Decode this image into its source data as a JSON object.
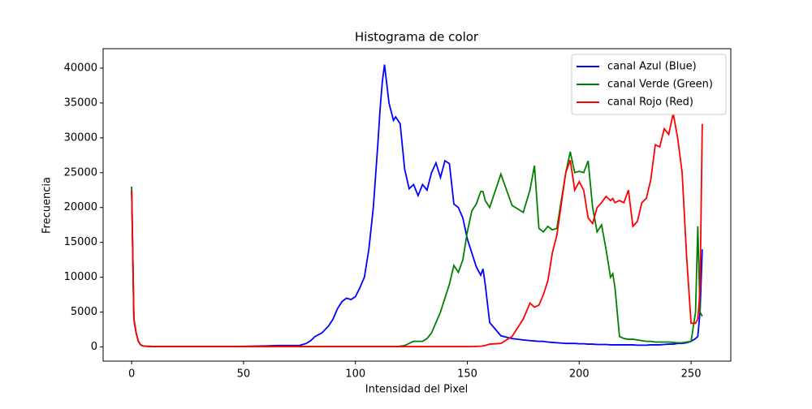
{
  "chart_data": {
    "type": "line",
    "title": "Histograma de color",
    "x_label": "Intensidad del Pixel",
    "y_label": "Frecuencia",
    "x": [
      0,
      1,
      2,
      3,
      4,
      5,
      6,
      8,
      10,
      15,
      20,
      30,
      40,
      50,
      60,
      65,
      70,
      75,
      78,
      80,
      82,
      85,
      88,
      90,
      92,
      94,
      96,
      98,
      100,
      102,
      104,
      106,
      108,
      110,
      111,
      112,
      113,
      115,
      117,
      118,
      120,
      122,
      124,
      126,
      128,
      130,
      132,
      134,
      136,
      138,
      140,
      142,
      144,
      146,
      148,
      150,
      152,
      154,
      156,
      157,
      158,
      160,
      165,
      170,
      175,
      178,
      180,
      182,
      184,
      186,
      188,
      190,
      192,
      194,
      196,
      198,
      200,
      202,
      204,
      206,
      208,
      210,
      212,
      214,
      215,
      216,
      218,
      220,
      222,
      224,
      226,
      228,
      230,
      232,
      234,
      236,
      238,
      240,
      242,
      244,
      246,
      248,
      250,
      252,
      253,
      254,
      255
    ],
    "series": [
      {
        "name": "canal Azul (Blue)",
        "color": "#0000ff",
        "values": [
          22500,
          4000,
          2000,
          800,
          300,
          150,
          100,
          80,
          50,
          50,
          50,
          50,
          60,
          80,
          150,
          200,
          200,
          200,
          500,
          900,
          1500,
          2000,
          3000,
          4000,
          5500,
          6500,
          7000,
          6800,
          7200,
          8500,
          10000,
          14000,
          20000,
          29000,
          34000,
          38000,
          40500,
          35000,
          32500,
          33000,
          32000,
          25500,
          22700,
          23300,
          21700,
          23300,
          22500,
          25000,
          26400,
          24300,
          26700,
          26300,
          20500,
          20000,
          18500,
          15500,
          13500,
          11500,
          10300,
          11200,
          9000,
          3500,
          1600,
          1200,
          1000,
          900,
          850,
          800,
          800,
          700,
          650,
          600,
          550,
          500,
          500,
          500,
          450,
          450,
          400,
          400,
          350,
          350,
          350,
          300,
          300,
          300,
          300,
          300,
          300,
          300,
          250,
          250,
          250,
          300,
          300,
          300,
          350,
          400,
          400,
          500,
          500,
          600,
          800,
          1200,
          1500,
          5000,
          14000
        ]
      },
      {
        "name": "canal Verde (Green)",
        "color": "#008000",
        "values": [
          23000,
          4000,
          2000,
          800,
          300,
          150,
          100,
          80,
          50,
          50,
          50,
          50,
          50,
          50,
          50,
          50,
          50,
          50,
          50,
          50,
          50,
          50,
          50,
          50,
          50,
          50,
          50,
          50,
          50,
          50,
          50,
          50,
          50,
          50,
          50,
          50,
          50,
          50,
          50,
          50,
          100,
          200,
          500,
          800,
          800,
          800,
          1200,
          2000,
          3500,
          5000,
          7000,
          9000,
          11700,
          10700,
          12500,
          16500,
          19500,
          20500,
          22300,
          22300,
          21000,
          20000,
          24800,
          20300,
          19300,
          22500,
          26000,
          17000,
          16500,
          17300,
          16800,
          17000,
          21000,
          25000,
          28000,
          25000,
          25200,
          25000,
          26700,
          20000,
          16500,
          17500,
          14000,
          10000,
          10500,
          8500,
          1500,
          1200,
          1100,
          1100,
          1000,
          900,
          800,
          800,
          700,
          700,
          700,
          700,
          650,
          600,
          600,
          700,
          800,
          5000,
          17300,
          5000,
          4400
        ]
      },
      {
        "name": "canal Rojo (Red)",
        "color": "#ff0000",
        "values": [
          22500,
          4000,
          2000,
          800,
          300,
          150,
          100,
          80,
          50,
          50,
          50,
          50,
          50,
          50,
          50,
          50,
          50,
          50,
          50,
          50,
          50,
          50,
          50,
          50,
          50,
          50,
          50,
          50,
          50,
          50,
          50,
          50,
          50,
          50,
          50,
          50,
          50,
          50,
          50,
          50,
          50,
          50,
          50,
          50,
          50,
          50,
          50,
          50,
          50,
          50,
          50,
          50,
          50,
          50,
          50,
          50,
          60,
          80,
          100,
          150,
          200,
          400,
          500,
          1500,
          4000,
          6300,
          5700,
          6000,
          7500,
          9500,
          13500,
          16000,
          20500,
          25000,
          26800,
          22500,
          23700,
          22500,
          18500,
          17700,
          20000,
          20700,
          21600,
          21000,
          21300,
          20700,
          21000,
          20700,
          22500,
          17300,
          18000,
          20700,
          21300,
          24000,
          29000,
          28700,
          31300,
          30500,
          33500,
          30000,
          25000,
          13000,
          3400,
          3400,
          4000,
          8000,
          32000
        ]
      }
    ],
    "xlim": [
      -12.75,
      267.75
    ],
    "ylim": [
      -2037,
      42787
    ],
    "xticks": [
      0,
      50,
      100,
      150,
      200,
      250
    ],
    "yticks": [
      0,
      5000,
      10000,
      15000,
      20000,
      25000,
      30000,
      35000,
      40000
    ],
    "legend": "upper right"
  }
}
